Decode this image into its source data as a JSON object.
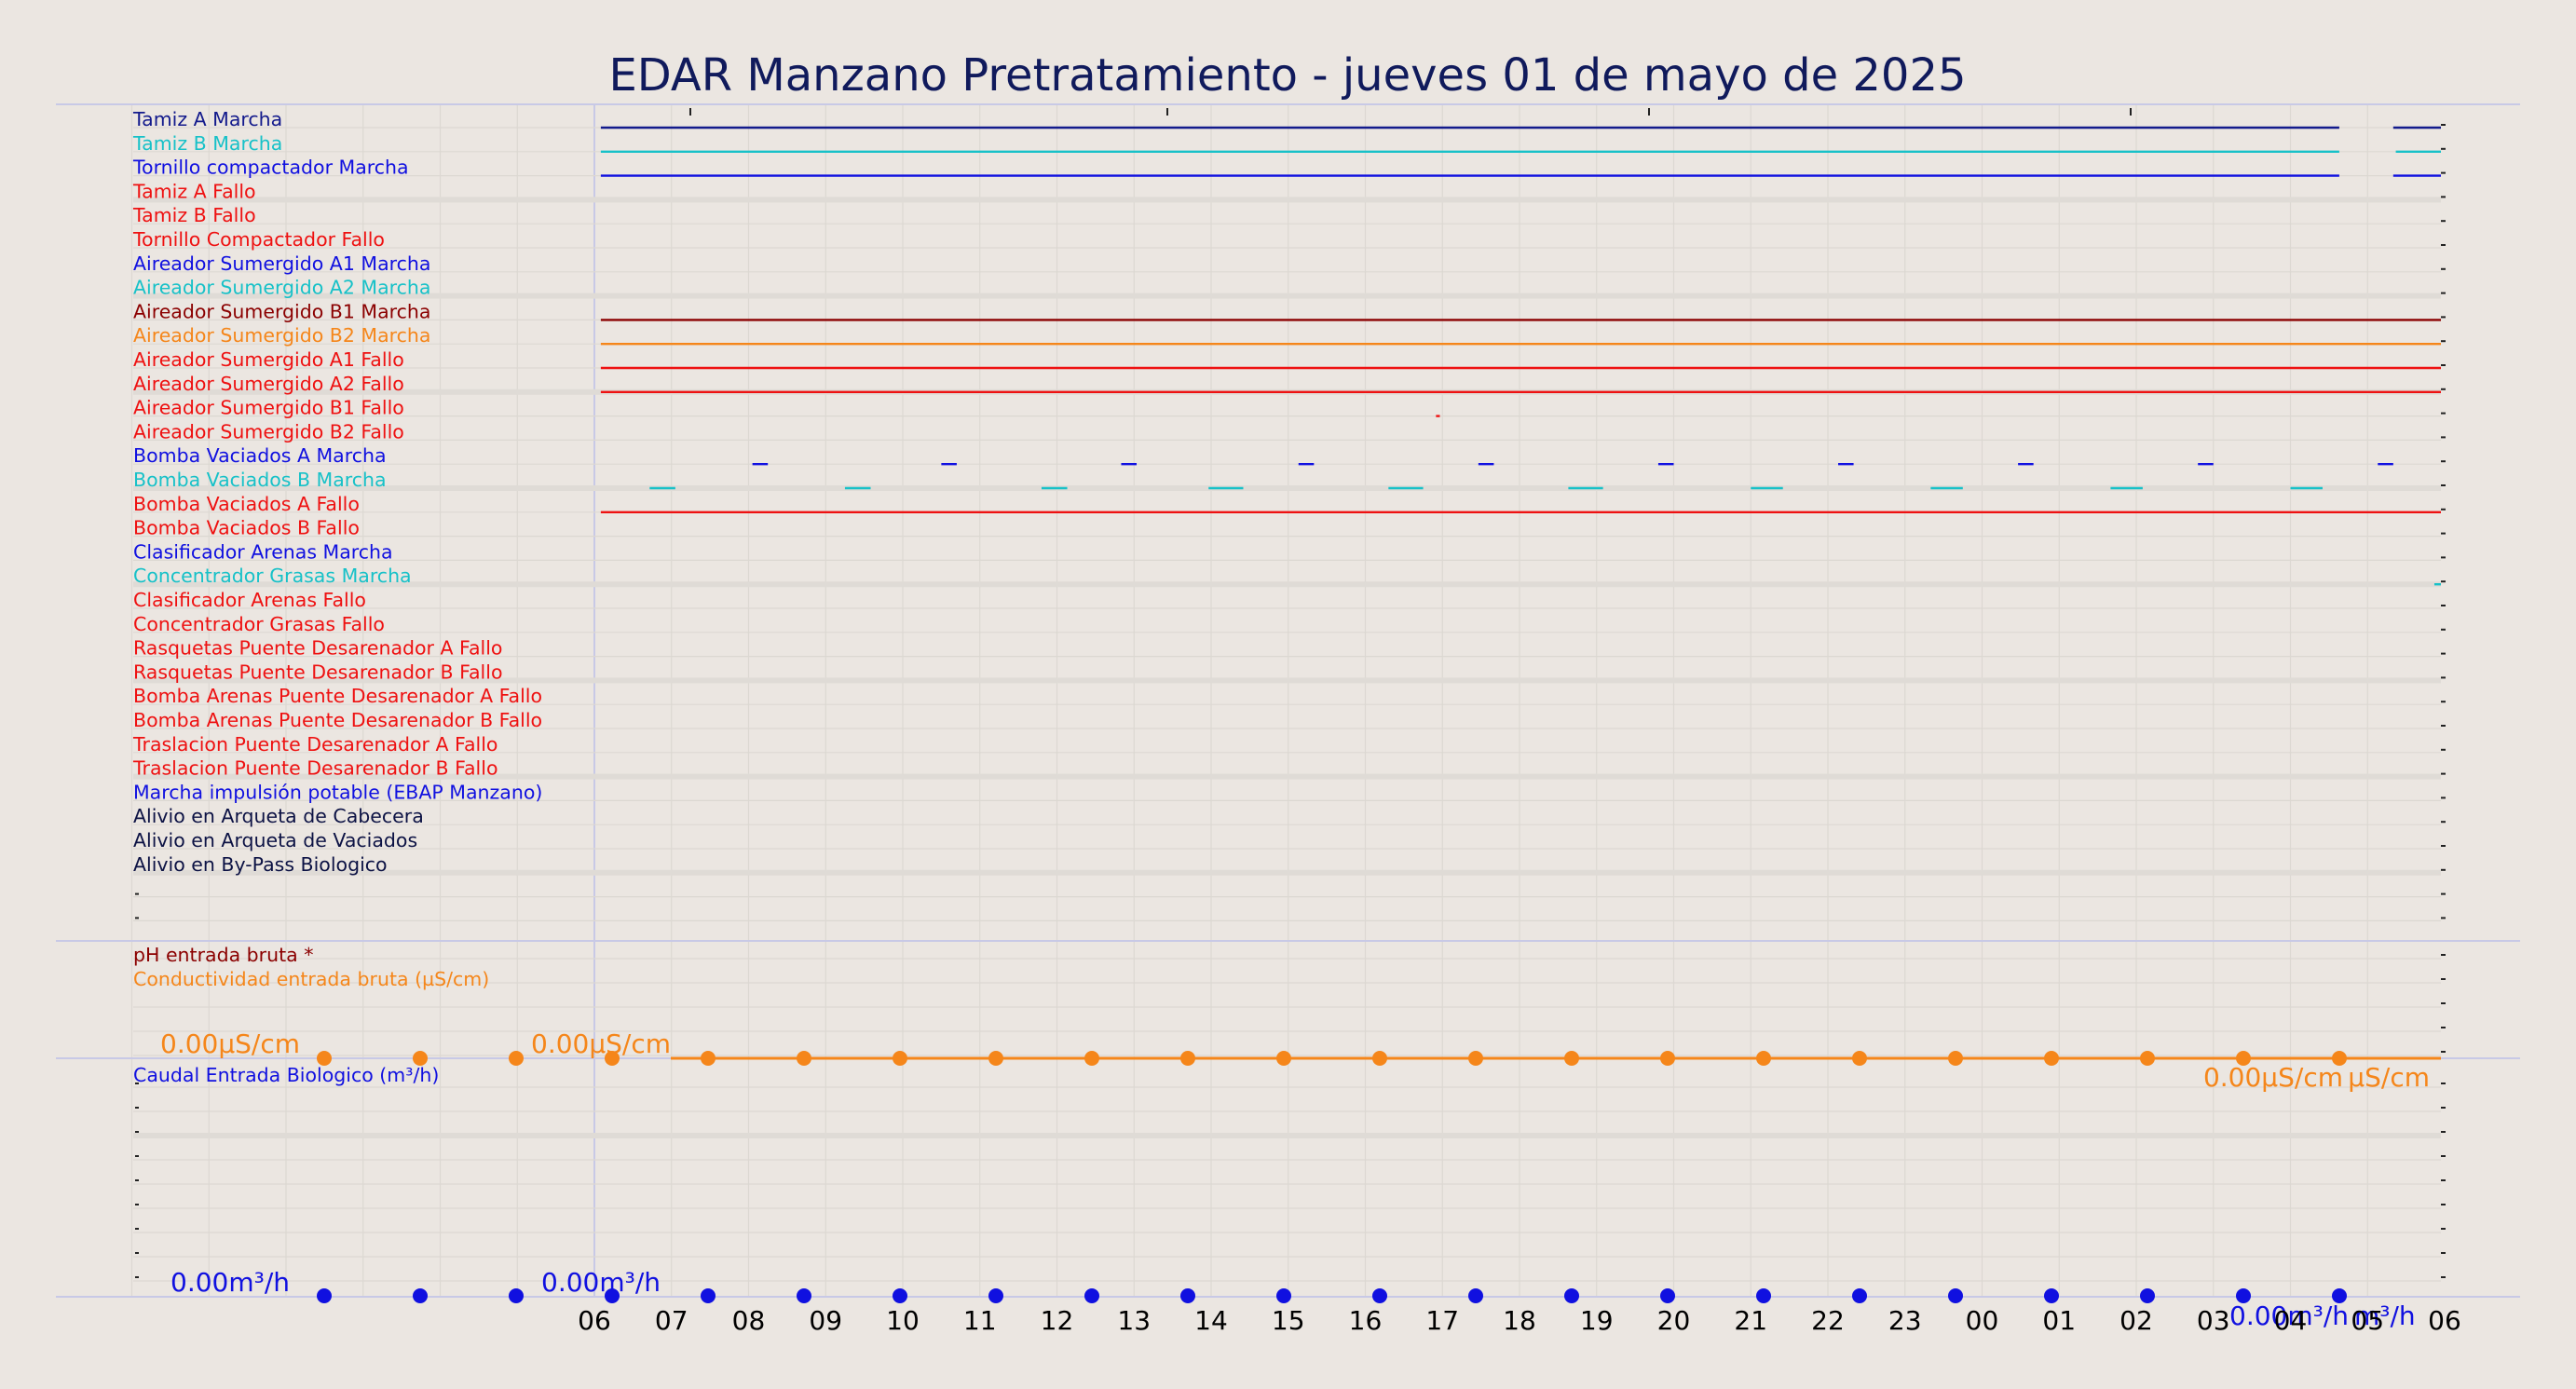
{
  "title": "EDAR Manzano Pretratamiento   -   jueves 01 de mayo de 2025",
  "colors": {
    "navy": "#131a8c",
    "blue": "#1010e0",
    "cyan": "#17c1c8",
    "red": "#ee1111",
    "darkred": "#8b0000",
    "orange": "#f5861a",
    "dark": "#0c1244"
  },
  "chart_data": [
    {
      "type": "line",
      "subtype": "digital-state-timeline",
      "x_unit": "hour of day",
      "xlim": [
        "06:00",
        "06:00 (next day)"
      ],
      "series": [
        {
          "name": "Tamiz A Marcha",
          "color": "navy",
          "on": [
            [
              "06:05",
              "04:38"
            ],
            [
              "05:20",
              "06:00"
            ]
          ]
        },
        {
          "name": "Tamiz B Marcha",
          "color": "cyan",
          "on": [
            [
              "06:05",
              "04:38"
            ],
            [
              "05:22",
              "06:00"
            ]
          ]
        },
        {
          "name": "Tornillo compactador Marcha",
          "color": "blue",
          "on": [
            [
              "06:05",
              "04:38"
            ],
            [
              "05:20",
              "06:00"
            ]
          ]
        },
        {
          "name": "Tamiz A Fallo",
          "color": "red",
          "on": []
        },
        {
          "name": "Tamiz B Fallo",
          "color": "red",
          "on": []
        },
        {
          "name": "Tornillo Compactador Fallo",
          "color": "red",
          "on": []
        },
        {
          "name": "Aireador Sumergido A1 Marcha",
          "color": "blue",
          "on": []
        },
        {
          "name": "Aireador Sumergido A2 Marcha",
          "color": "cyan",
          "on": []
        },
        {
          "name": "Aireador Sumergido B1 Marcha",
          "color": "darkred",
          "on": [
            [
              "06:05",
              "06:00"
            ]
          ]
        },
        {
          "name": "Aireador Sumergido B2 Marcha",
          "color": "orange",
          "on": [
            [
              "06:05",
              "06:00"
            ]
          ]
        },
        {
          "name": "Aireador Sumergido A1 Fallo",
          "color": "red",
          "on": [
            [
              "06:05",
              "06:00"
            ]
          ]
        },
        {
          "name": "Aireador Sumergido A2 Fallo",
          "color": "red",
          "on": [
            [
              "06:05",
              "06:00"
            ]
          ]
        },
        {
          "name": "Aireador Sumergido B1 Fallo",
          "color": "red",
          "on": [
            [
              "16:55",
              "16:58"
            ]
          ]
        },
        {
          "name": "Aireador Sumergido B2 Fallo",
          "color": "red",
          "on": []
        },
        {
          "name": "Bomba Vaciados A Marcha",
          "color": "blue",
          "on": [
            [
              "08:03",
              "08:15"
            ],
            [
              "10:30",
              "10:42"
            ],
            [
              "12:50",
              "13:02"
            ],
            [
              "15:08",
              "15:20"
            ],
            [
              "17:28",
              "17:40"
            ],
            [
              "19:48",
              "20:00"
            ],
            [
              "22:08",
              "22:20"
            ],
            [
              "00:28",
              "00:40"
            ],
            [
              "02:48",
              "03:00"
            ],
            [
              "05:08",
              "05:20"
            ]
          ]
        },
        {
          "name": "Bomba Vaciados B Marcha",
          "color": "cyan",
          "on": [
            [
              "06:43",
              "07:03"
            ],
            [
              "09:15",
              "09:35"
            ],
            [
              "11:48",
              "12:08"
            ],
            [
              "13:58",
              "14:25"
            ],
            [
              "16:18",
              "16:45"
            ],
            [
              "18:38",
              "19:05"
            ],
            [
              "21:00",
              "21:25"
            ],
            [
              "23:20",
              "23:45"
            ],
            [
              "01:40",
              "02:05"
            ],
            [
              "04:00",
              "04:25"
            ]
          ]
        },
        {
          "name": "Bomba Vaciados A Fallo",
          "color": "red",
          "on": [
            [
              "06:05",
              "06:00"
            ]
          ]
        },
        {
          "name": "Bomba Vaciados B Fallo",
          "color": "red",
          "on": []
        },
        {
          "name": "Clasificador Arenas Marcha",
          "color": "blue",
          "on": []
        },
        {
          "name": "Concentrador Grasas Marcha",
          "color": "cyan",
          "on": [
            [
              "05:52",
              "06:00"
            ]
          ]
        },
        {
          "name": "Clasificador Arenas Fallo",
          "color": "red",
          "on": []
        },
        {
          "name": "Concentrador Grasas Fallo",
          "color": "red",
          "on": []
        },
        {
          "name": "Rasquetas Puente Desarenador A Fallo",
          "color": "red",
          "on": []
        },
        {
          "name": "Rasquetas Puente Desarenador B Fallo",
          "color": "red",
          "on": []
        },
        {
          "name": "Bomba Arenas Puente Desarenador A Fallo",
          "color": "red",
          "on": []
        },
        {
          "name": "Bomba Arenas Puente Desarenador B Fallo",
          "color": "red",
          "on": []
        },
        {
          "name": "Traslacion Puente Desarenador A Fallo",
          "color": "red",
          "on": []
        },
        {
          "name": "Traslacion Puente Desarenador B Fallo",
          "color": "red",
          "on": []
        },
        {
          "name": "Marcha impulsión potable (EBAP Manzano)",
          "color": "blue",
          "on": []
        },
        {
          "name": "Alivio en Arqueta de Cabecera",
          "color": "dark",
          "on": []
        },
        {
          "name": "Alivio en Arqueta de Vaciados",
          "color": "dark",
          "on": []
        },
        {
          "name": "Alivio en By-Pass Biologico",
          "color": "dark",
          "on": []
        }
      ]
    },
    {
      "type": "line",
      "series": [
        {
          "name": "pH entrada bruta *",
          "color": "darkred",
          "values": []
        },
        {
          "name": "Conductividad entrada bruta (µS/cm)",
          "color": "orange",
          "value": 0.0
        }
      ],
      "annotations": [
        {
          "text": "0.00µS/cm",
          "at": "start"
        },
        {
          "text": "0.00µS/cm",
          "at": "06:00"
        },
        {
          "text": "0.00µS/cm",
          "at": "end"
        },
        {
          "text": "µS/cm",
          "at": "end"
        }
      ]
    },
    {
      "type": "line",
      "series": [
        {
          "name": "Caudal Entrada Biologico (m³/h)",
          "color": "blue",
          "value": 0.0
        }
      ],
      "annotations": [
        {
          "text": "0.00m³/h",
          "at": "start"
        },
        {
          "text": "0.00m³/h",
          "at": "06:00"
        },
        {
          "text": "0.00m³/h",
          "at": "end"
        },
        {
          "text": "m³/h",
          "at": "end"
        }
      ]
    }
  ],
  "x_ticks": [
    "06",
    "07",
    "08",
    "09",
    "10",
    "11",
    "12",
    "13",
    "14",
    "15",
    "16",
    "17",
    "18",
    "19",
    "20",
    "21",
    "22",
    "23",
    "00",
    "01",
    "02",
    "03",
    "04",
    "05",
    "06"
  ]
}
